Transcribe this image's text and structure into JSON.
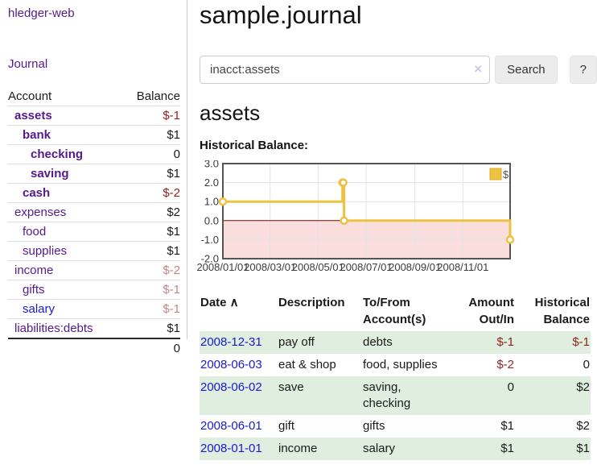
{
  "sidebar": {
    "brand": "hledger-web",
    "nav_journal": "Journal",
    "accounts_header": {
      "account": "Account",
      "balance": "Balance"
    },
    "accounts": [
      {
        "name": "assets",
        "indent": 1,
        "bold": true,
        "balance": "$-1",
        "neg": "strong"
      },
      {
        "name": "bank",
        "indent": 2,
        "bold": true,
        "balance": "$1"
      },
      {
        "name": "checking",
        "indent": 3,
        "bold": true,
        "balance": "0"
      },
      {
        "name": "saving",
        "indent": 3,
        "bold": true,
        "balance": "$1"
      },
      {
        "name": "cash",
        "indent": 2,
        "bold": true,
        "balance": "$-2",
        "neg": "strong"
      },
      {
        "name": "expenses",
        "indent": 1,
        "bold": false,
        "balance": "$2"
      },
      {
        "name": "food",
        "indent": 2,
        "bold": false,
        "balance": "$1"
      },
      {
        "name": "supplies",
        "indent": 2,
        "bold": false,
        "balance": "$1"
      },
      {
        "name": "income",
        "indent": 1,
        "bold": false,
        "balance": "$-2",
        "neg": "muted"
      },
      {
        "name": "gifts",
        "indent": 2,
        "bold": false,
        "balance": "$-1",
        "neg": "muted"
      },
      {
        "name": "salary",
        "indent": 2,
        "bold": false,
        "balance": "$-1",
        "neg": "muted",
        "blue": true
      },
      {
        "name": "liabilities:debts",
        "indent": 1,
        "bold": false,
        "balance": "$1"
      }
    ],
    "total": "0"
  },
  "header": {
    "title": "sample.journal"
  },
  "search": {
    "query": "inacct:assets",
    "clear_icon": "×",
    "button_label": "Search",
    "help_label": "?"
  },
  "main": {
    "account_heading": "assets",
    "chart_label": "Historical Balance:"
  },
  "chart_data": {
    "type": "line",
    "step": true,
    "title": "Historical Balance",
    "legend": "$",
    "legend_position": "top-right",
    "series": [
      {
        "name": "$",
        "color": "#EDC240",
        "points": [
          [
            "2008-01-01",
            1
          ],
          [
            "2008-06-01",
            2
          ],
          [
            "2008-06-02",
            2
          ],
          [
            "2008-06-03",
            0
          ],
          [
            "2008-12-31",
            -1
          ]
        ]
      }
    ],
    "xlim": [
      "2008-01-01",
      "2008-12-31"
    ],
    "ylim": [
      -2,
      3
    ],
    "y_ticks": [
      "3.0",
      "2.0",
      "1.0",
      "0.0",
      "-1.0",
      "-2.0"
    ],
    "x_ticks": [
      {
        "date": "2008-01-01",
        "label": "2008/01/01"
      },
      {
        "date": "2008-03-01",
        "label": "2008/03/01"
      },
      {
        "date": "2008-05-01",
        "label": "2008/05/01"
      },
      {
        "date": "2008-07-01",
        "label": "2008/07/01"
      },
      {
        "date": "2008-09-01",
        "label": "2008/09/01"
      },
      {
        "date": "2008-11-01",
        "label": "2008/11/01"
      }
    ],
    "grid": true,
    "border_color": "#545454",
    "grid_color": "#e3e3e3",
    "zero_line_color": "#8b0000",
    "negative_region_color": "#fadddd"
  },
  "register": {
    "sort_icon": "∧",
    "headers": [
      {
        "label": "Date",
        "sorted": true,
        "align": "left"
      },
      {
        "label": "Description",
        "align": "left"
      },
      {
        "label": "To/From Account(s)",
        "align": "left"
      },
      {
        "label": "Amount Out/In",
        "align": "right"
      },
      {
        "label": "Historical Balance",
        "align": "right"
      }
    ],
    "rows": [
      {
        "date": "2008-12-31",
        "description": "pay off",
        "accounts": "debts",
        "amount": "$-1",
        "amount_neg": true,
        "balance": "$-1",
        "balance_neg": true,
        "shaded": true
      },
      {
        "date": "2008-06-03",
        "description": "eat & shop",
        "accounts": "food, supplies",
        "amount": "$-2",
        "amount_neg": true,
        "balance": "0",
        "balance_neg": false,
        "shaded": false
      },
      {
        "date": "2008-06-02",
        "description": "save",
        "accounts": "saving, checking",
        "amount": "0",
        "amount_neg": false,
        "balance": "$2",
        "balance_neg": false,
        "shaded": true
      },
      {
        "date": "2008-06-01",
        "description": "gift",
        "accounts": "gifts",
        "amount": "$1",
        "amount_neg": false,
        "balance": "$2",
        "balance_neg": false,
        "shaded": false
      },
      {
        "date": "2008-01-01",
        "description": "income",
        "accounts": "salary",
        "amount": "$1",
        "amount_neg": false,
        "balance": "$1",
        "balance_neg": false,
        "shaded": true
      }
    ]
  }
}
